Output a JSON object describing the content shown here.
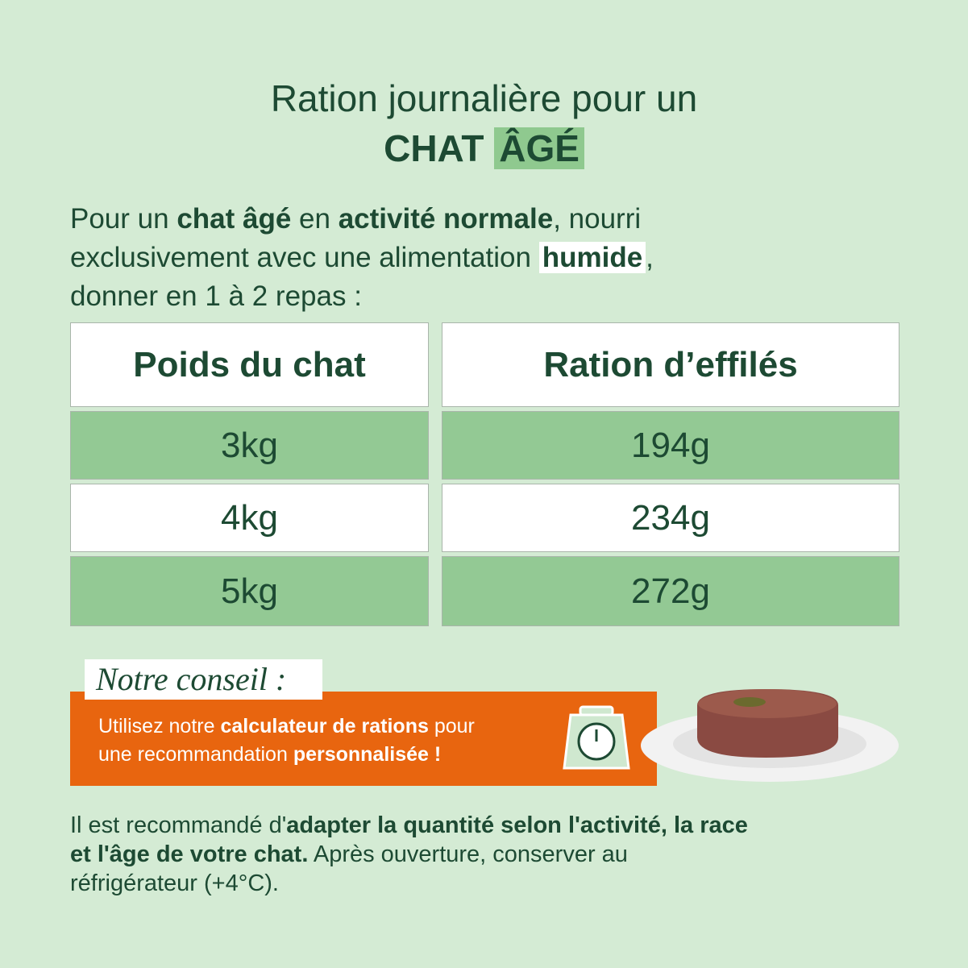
{
  "title": {
    "line1": "Ration journalière pour un",
    "line2a": "CHAT",
    "line2b": "ÂGÉ"
  },
  "intro": {
    "lines": [
      [
        "Pour un ",
        "chat âgé",
        " en ",
        "activité normale",
        ", nourri"
      ],
      [
        "exclusivement avec une alimentation ",
        "humide",
        ","
      ],
      [
        "donner en 1 à 2 repas :"
      ]
    ]
  },
  "table": {
    "header": [
      "Poids du chat",
      "Ration d’effilés"
    ],
    "rows": [
      [
        "3kg",
        "194g"
      ],
      [
        "4kg",
        "234g"
      ],
      [
        "5kg",
        "272g"
      ]
    ]
  },
  "conseil": {
    "label": "Notre conseil :",
    "lines": [
      [
        "Utilisez notre ",
        "calculateur de rations",
        " pour"
      ],
      [
        "une recommandation ",
        "personnalisée !"
      ]
    ]
  },
  "footer": {
    "lines": [
      [
        "Il est recommandé d'",
        "adapter la quantité selon l'activité, la race"
      ],
      [
        "et l'âge de votre chat.",
        " Après ouverture, conserver au"
      ],
      [
        "réfrigérateur (+4°C)."
      ]
    ]
  }
}
